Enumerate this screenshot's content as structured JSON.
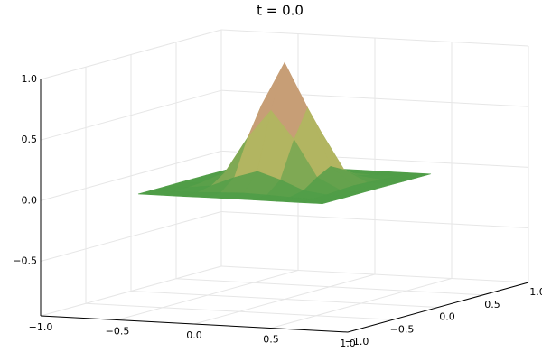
{
  "chart_data": {
    "type": "surface",
    "title": "t = 0.0",
    "x": [
      -0.6,
      -0.45,
      -0.3,
      -0.15,
      0,
      0.15,
      0.3,
      0.45,
      0.6
    ],
    "y": [
      -0.6,
      -0.45,
      -0.3,
      -0.15,
      0,
      0.15,
      0.3,
      0.45,
      0.6
    ],
    "z": [
      [
        0,
        0,
        0,
        0.001,
        0.001,
        0.001,
        0,
        0,
        0
      ],
      [
        0,
        0,
        0.003,
        0.011,
        0.017,
        0.011,
        0.003,
        0,
        0
      ],
      [
        0,
        0.003,
        0.027,
        0.105,
        0.165,
        0.105,
        0.027,
        0.003,
        0
      ],
      [
        0.001,
        0.011,
        0.105,
        0.407,
        0.638,
        0.407,
        0.105,
        0.011,
        0.001
      ],
      [
        0.001,
        0.017,
        0.165,
        0.638,
        1,
        0.638,
        0.165,
        0.017,
        0.001
      ],
      [
        0.001,
        0.011,
        0.105,
        0.407,
        0.638,
        0.407,
        0.105,
        0.011,
        0.001
      ],
      [
        0,
        0.003,
        0.027,
        0.105,
        0.165,
        0.105,
        0.027,
        0.003,
        0
      ],
      [
        0,
        0,
        0.003,
        0.011,
        0.017,
        0.011,
        0.003,
        0,
        0
      ],
      [
        0,
        0,
        0,
        0.001,
        0.001,
        0.001,
        0,
        0,
        0
      ]
    ],
    "xlim": [
      -1,
      1
    ],
    "ylim": [
      -1,
      1
    ],
    "zlim": [
      -0.95,
      1
    ],
    "xticks": [
      {
        "value": -1,
        "label": "−1.0"
      },
      {
        "value": -0.5,
        "label": "−0.5"
      },
      {
        "value": 0,
        "label": "0.0"
      },
      {
        "value": 0.5,
        "label": "0.5"
      },
      {
        "value": 1,
        "label": "1.0"
      }
    ],
    "yticks": [
      {
        "value": -1,
        "label": "−1.0"
      },
      {
        "value": -0.5,
        "label": "−0.5"
      },
      {
        "value": 0,
        "label": "0.0"
      },
      {
        "value": 0.5,
        "label": "0.5"
      },
      {
        "value": 1,
        "label": "1.0"
      }
    ],
    "zticks": [
      {
        "value": -0.5,
        "label": "−0.5"
      },
      {
        "value": 0,
        "label": "0.0"
      },
      {
        "value": 0.5,
        "label": "0.5"
      },
      {
        "value": 1,
        "label": "1.0"
      }
    ],
    "colormap": [
      "#4f9d47",
      "#b3b561",
      "#c69d75",
      "#f4e8e8"
    ],
    "grid": true
  }
}
